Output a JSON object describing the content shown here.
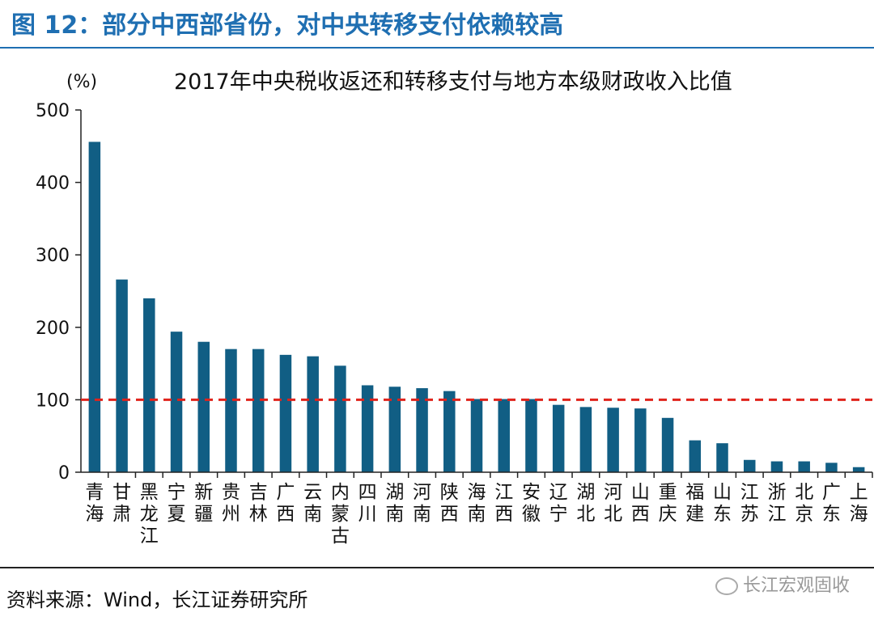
{
  "figure": {
    "title": "图 12：部分中西部省份，对中央转移支付依赖较高",
    "source": "资料来源：Wind，长江证券研究所",
    "watermark": "长江宏观固收"
  },
  "colors": {
    "bar": "#115e84",
    "reference": "#e0231c",
    "title": "#1f6fb2"
  },
  "chart_data": {
    "type": "bar",
    "title": "2017年中央税收返还和转移支付与地方本级财政收入比值",
    "ylabel": "(%)",
    "xlabel": "",
    "ylim": [
      0,
      500
    ],
    "yticks": [
      0,
      100,
      200,
      300,
      400,
      500
    ],
    "grid": false,
    "reference_line": {
      "value": 100,
      "style": "dashed",
      "color": "#e0231c"
    },
    "categories": [
      "青海",
      "甘肃",
      "黑龙江",
      "宁夏",
      "新疆",
      "贵州",
      "吉林",
      "广西",
      "云南",
      "内蒙古",
      "四川",
      "湖南",
      "河南",
      "陕西",
      "海南",
      "江西",
      "安徽",
      "辽宁",
      "湖北",
      "河北",
      "山西",
      "重庆",
      "福建",
      "山东",
      "江苏",
      "浙江",
      "北京",
      "广东",
      "上海"
    ],
    "values": [
      456,
      266,
      240,
      194,
      180,
      170,
      170,
      162,
      160,
      147,
      120,
      118,
      116,
      112,
      101,
      101,
      101,
      93,
      90,
      89,
      88,
      75,
      44,
      40,
      17,
      15,
      15,
      13,
      7
    ]
  }
}
